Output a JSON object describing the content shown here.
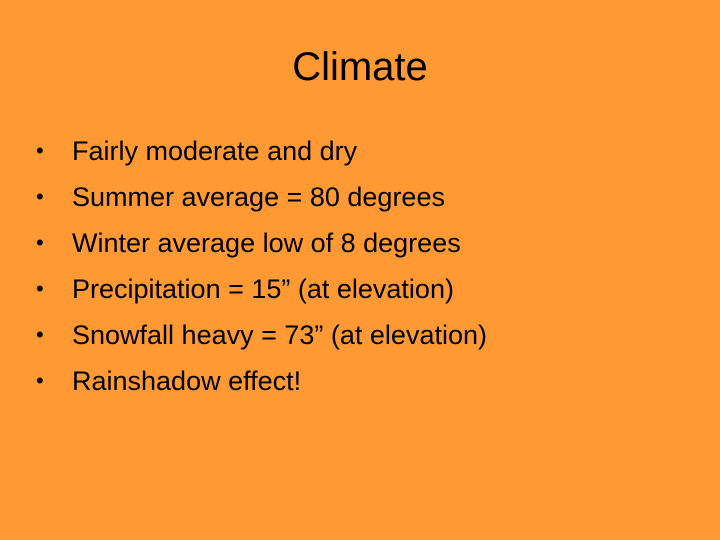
{
  "slide": {
    "title": "Climate",
    "background_color": "#FF9933",
    "bullet_glyph": "•",
    "bullets": [
      "Fairly moderate and dry",
      "Summer average = 80 degrees",
      "Winter average low of 8 degrees",
      "Precipitation = 15” (at elevation)",
      "Snowfall heavy = 73” (at elevation)",
      "Rainshadow effect!"
    ]
  }
}
